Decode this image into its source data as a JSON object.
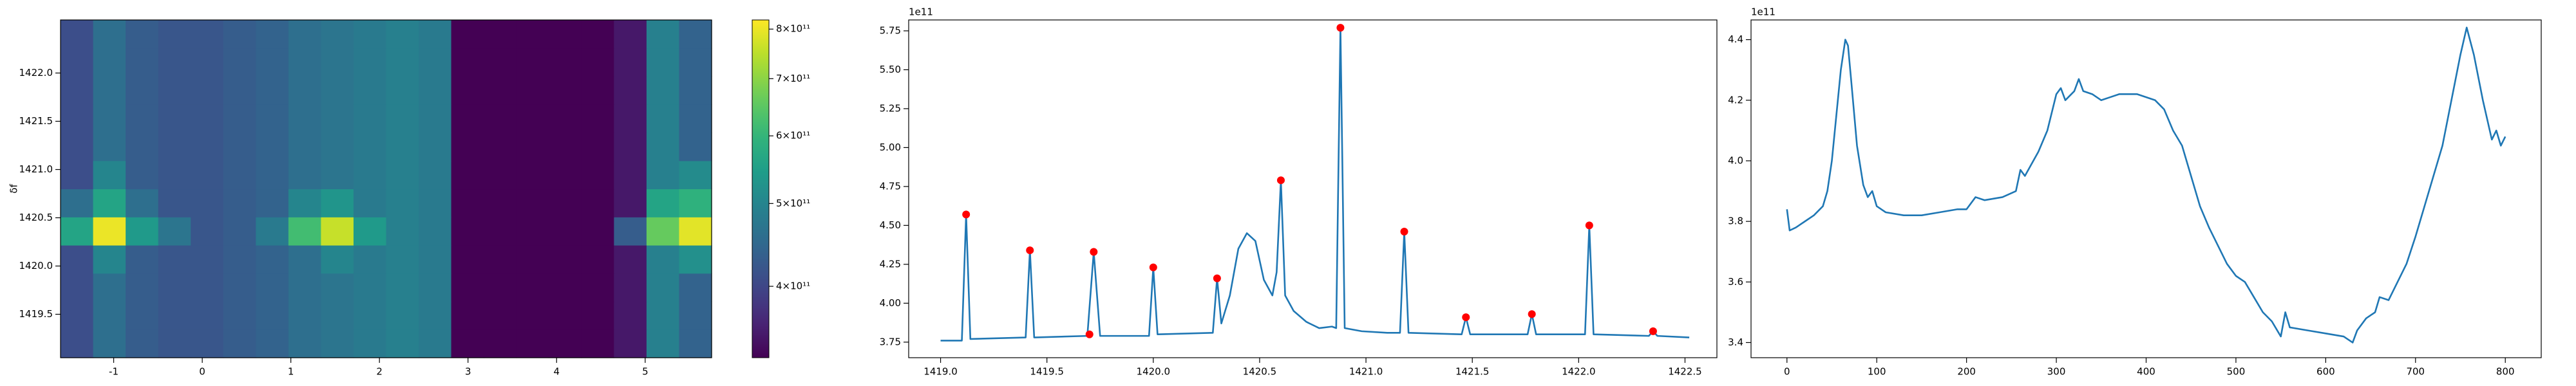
{
  "chart_data": [
    {
      "type": "heatmap",
      "ylabel": "δf",
      "xlim": [
        -1.6,
        5.75
      ],
      "ylim": [
        1419.05,
        1422.55
      ],
      "xticks": [
        -1,
        0,
        1,
        2,
        3,
        4,
        5
      ],
      "yticks": [
        1419.5,
        {
          "value": 1420,
          "label": "1420.0"
        },
        1420.5,
        {
          "value": 1421,
          "label": "1421.0"
        },
        1421.5,
        {
          "value": 1422,
          "label": "1422.0"
        }
      ],
      "z": [
        [
          410000000000.0,
          460000000000.0,
          430000000000.0,
          420000000000.0,
          420000000000.0,
          430000000000.0,
          440000000000.0,
          460000000000.0,
          470000000000.0,
          480000000000.0,
          490000000000.0,
          480000000000.0,
          330000000000.0,
          320000000000.0,
          310000000000.0,
          310000000000.0,
          320000000000.0,
          350000000000.0,
          490000000000.0,
          440000000000.0
        ],
        [
          410000000000.0,
          460000000000.0,
          430000000000.0,
          420000000000.0,
          420000000000.0,
          430000000000.0,
          440000000000.0,
          460000000000.0,
          470000000000.0,
          480000000000.0,
          490000000000.0,
          480000000000.0,
          330000000000.0,
          320000000000.0,
          310000000000.0,
          310000000000.0,
          320000000000.0,
          350000000000.0,
          490000000000.0,
          440000000000.0
        ],
        [
          410000000000.0,
          460000000000.0,
          430000000000.0,
          420000000000.0,
          420000000000.0,
          430000000000.0,
          440000000000.0,
          460000000000.0,
          470000000000.0,
          480000000000.0,
          490000000000.0,
          480000000000.0,
          330000000000.0,
          320000000000.0,
          310000000000.0,
          310000000000.0,
          320000000000.0,
          350000000000.0,
          490000000000.0,
          440000000000.0
        ],
        [
          410000000000.0,
          500000000000.0,
          430000000000.0,
          420000000000.0,
          420000000000.0,
          430000000000.0,
          440000000000.0,
          460000000000.0,
          500000000000.0,
          480000000000.0,
          490000000000.0,
          480000000000.0,
          330000000000.0,
          320000000000.0,
          310000000000.0,
          310000000000.0,
          320000000000.0,
          350000000000.0,
          490000000000.0,
          520000000000.0
        ],
        [
          560000000000.0,
          800000000000.0,
          540000000000.0,
          470000000000.0,
          420000000000.0,
          430000000000.0,
          480000000000.0,
          620000000000.0,
          760000000000.0,
          540000000000.0,
          490000000000.0,
          480000000000.0,
          330000000000.0,
          320000000000.0,
          310000000000.0,
          310000000000.0,
          320000000000.0,
          430000000000.0,
          660000000000.0,
          790000000000.0
        ],
        [
          460000000000.0,
          560000000000.0,
          460000000000.0,
          420000000000.0,
          420000000000.0,
          430000000000.0,
          440000000000.0,
          500000000000.0,
          530000000000.0,
          480000000000.0,
          490000000000.0,
          480000000000.0,
          330000000000.0,
          320000000000.0,
          310000000000.0,
          310000000000.0,
          320000000000.0,
          350000000000.0,
          560000000000.0,
          590000000000.0
        ],
        [
          410000000000.0,
          500000000000.0,
          430000000000.0,
          420000000000.0,
          420000000000.0,
          430000000000.0,
          440000000000.0,
          460000000000.0,
          470000000000.0,
          480000000000.0,
          490000000000.0,
          480000000000.0,
          330000000000.0,
          320000000000.0,
          310000000000.0,
          310000000000.0,
          320000000000.0,
          350000000000.0,
          490000000000.0,
          510000000000.0
        ],
        [
          410000000000.0,
          460000000000.0,
          430000000000.0,
          420000000000.0,
          420000000000.0,
          430000000000.0,
          440000000000.0,
          460000000000.0,
          470000000000.0,
          480000000000.0,
          490000000000.0,
          480000000000.0,
          330000000000.0,
          320000000000.0,
          310000000000.0,
          310000000000.0,
          320000000000.0,
          350000000000.0,
          490000000000.0,
          440000000000.0
        ],
        [
          410000000000.0,
          460000000000.0,
          430000000000.0,
          420000000000.0,
          420000000000.0,
          430000000000.0,
          440000000000.0,
          460000000000.0,
          470000000000.0,
          480000000000.0,
          490000000000.0,
          480000000000.0,
          330000000000.0,
          320000000000.0,
          310000000000.0,
          310000000000.0,
          320000000000.0,
          350000000000.0,
          490000000000.0,
          440000000000.0
        ],
        [
          410000000000.0,
          460000000000.0,
          430000000000.0,
          420000000000.0,
          420000000000.0,
          430000000000.0,
          440000000000.0,
          460000000000.0,
          470000000000.0,
          480000000000.0,
          490000000000.0,
          480000000000.0,
          330000000000.0,
          320000000000.0,
          310000000000.0,
          310000000000.0,
          320000000000.0,
          350000000000.0,
          490000000000.0,
          440000000000.0
        ],
        [
          410000000000.0,
          460000000000.0,
          430000000000.0,
          420000000000.0,
          420000000000.0,
          430000000000.0,
          440000000000.0,
          460000000000.0,
          470000000000.0,
          480000000000.0,
          490000000000.0,
          480000000000.0,
          330000000000.0,
          320000000000.0,
          310000000000.0,
          310000000000.0,
          320000000000.0,
          350000000000.0,
          490000000000.0,
          440000000000.0
        ],
        [
          410000000000.0,
          460000000000.0,
          430000000000.0,
          420000000000.0,
          420000000000.0,
          430000000000.0,
          440000000000.0,
          460000000000.0,
          470000000000.0,
          480000000000.0,
          490000000000.0,
          480000000000.0,
          330000000000.0,
          320000000000.0,
          310000000000.0,
          310000000000.0,
          320000000000.0,
          350000000000.0,
          490000000000.0,
          440000000000.0
        ]
      ],
      "colorbar": {
        "clim": [
          330000000000.0,
          820000000000.0
        ],
        "scale": "log",
        "colormap": "viridis",
        "ticks": [
          {
            "value": 400000000000.0,
            "label": "4×10¹¹"
          },
          {
            "value": 500000000000.0,
            "label": "5×10¹¹"
          },
          {
            "value": 600000000000.0,
            "label": "6×10¹¹"
          },
          {
            "value": 700000000000.0,
            "label": "7×10¹¹"
          },
          {
            "value": 800000000000.0,
            "label": "8×10¹¹"
          }
        ]
      }
    },
    {
      "type": "line",
      "offset_label": "1e11",
      "xlim": [
        1418.85,
        1422.65
      ],
      "ylim": [
        3.65,
        5.82
      ],
      "xticks": [
        {
          "value": 1419,
          "label": "1419.0"
        },
        1419.5,
        {
          "value": 1420,
          "label": "1420.0"
        },
        1420.5,
        {
          "value": 1421,
          "label": "1421.0"
        },
        1421.5,
        {
          "value": 1422,
          "label": "1422.0"
        },
        1422.5
      ],
      "yticks": [
        3.75,
        {
          "value": 4,
          "label": "4.00"
        },
        4.25,
        {
          "value": 4.5,
          "label": "4.50"
        },
        4.75,
        {
          "value": 5,
          "label": "5.00"
        },
        5.25,
        {
          "value": 5.5,
          "label": "5.50"
        },
        5.75
      ],
      "series": [
        {
          "style": "line",
          "color": "#1f77b4",
          "x": [
            1419.0,
            1419.1,
            1419.12,
            1419.14,
            1419.4,
            1419.42,
            1419.44,
            1419.69,
            1419.72,
            1419.75,
            1419.98,
            1420.0,
            1420.02,
            1420.28,
            1420.3,
            1420.32,
            1420.36,
            1420.4,
            1420.44,
            1420.48,
            1420.52,
            1420.56,
            1420.58,
            1420.6,
            1420.62,
            1420.66,
            1420.72,
            1420.78,
            1420.84,
            1420.86,
            1420.88,
            1420.9,
            1420.98,
            1421.1,
            1421.16,
            1421.18,
            1421.2,
            1421.45,
            1421.47,
            1421.49,
            1421.76,
            1421.78,
            1421.8,
            1422.03,
            1422.05,
            1422.07,
            1422.33,
            1422.35,
            1422.37,
            1422.52
          ],
          "values": [
            3.76,
            3.76,
            4.57,
            3.77,
            3.78,
            4.34,
            3.78,
            3.79,
            4.33,
            3.79,
            3.79,
            4.23,
            3.8,
            3.81,
            4.16,
            3.87,
            4.05,
            4.35,
            4.45,
            4.4,
            4.15,
            4.05,
            4.2,
            4.79,
            4.05,
            3.95,
            3.88,
            3.84,
            3.85,
            3.84,
            5.77,
            3.84,
            3.82,
            3.81,
            3.81,
            4.46,
            3.81,
            3.8,
            3.91,
            3.8,
            3.8,
            3.93,
            3.8,
            3.8,
            4.5,
            3.8,
            3.79,
            3.82,
            3.79,
            3.78
          ]
        },
        {
          "style": "points",
          "color": "#ff0000",
          "x": [
            1419.12,
            1419.42,
            1419.7,
            1419.72,
            1420.0,
            1420.3,
            1420.6,
            1420.88,
            1421.18,
            1421.47,
            1421.78,
            1422.05,
            1422.35
          ],
          "values": [
            4.57,
            4.34,
            3.8,
            4.33,
            4.23,
            4.16,
            4.79,
            5.77,
            4.46,
            3.91,
            3.93,
            4.5,
            3.82
          ]
        }
      ]
    },
    {
      "type": "line",
      "offset_label": "1e11",
      "xlim": [
        -40,
        840
      ],
      "ylim": [
        3.35,
        4.465
      ],
      "xticks": [
        0,
        100,
        200,
        300,
        400,
        500,
        600,
        700,
        800
      ],
      "yticks": [
        3.4,
        3.6,
        3.8,
        {
          "value": 4,
          "label": "4.0"
        },
        4.2,
        4.4
      ],
      "series": [
        {
          "style": "line",
          "color": "#1f77b4",
          "x": [
            0,
            3,
            10,
            20,
            30,
            40,
            45,
            50,
            55,
            60,
            65,
            68,
            72,
            78,
            85,
            90,
            95,
            100,
            110,
            130,
            150,
            170,
            190,
            200,
            210,
            220,
            240,
            255,
            260,
            265,
            280,
            290,
            300,
            305,
            310,
            320,
            325,
            330,
            340,
            350,
            360,
            370,
            390,
            410,
            420,
            430,
            440,
            450,
            460,
            470,
            480,
            490,
            500,
            510,
            520,
            530,
            540,
            550,
            555,
            560,
            580,
            600,
            620,
            630,
            635,
            645,
            655,
            660,
            670,
            680,
            690,
            700,
            710,
            720,
            730,
            740,
            750,
            757,
            765,
            775,
            785,
            790,
            795,
            800
          ],
          "values": [
            3.84,
            3.77,
            3.78,
            3.8,
            3.82,
            3.85,
            3.9,
            4.0,
            4.15,
            4.3,
            4.4,
            4.38,
            4.25,
            4.05,
            3.92,
            3.88,
            3.9,
            3.85,
            3.83,
            3.82,
            3.82,
            3.83,
            3.84,
            3.84,
            3.88,
            3.87,
            3.88,
            3.9,
            3.97,
            3.95,
            4.03,
            4.1,
            4.22,
            4.24,
            4.2,
            4.23,
            4.27,
            4.23,
            4.22,
            4.2,
            4.21,
            4.22,
            4.22,
            4.2,
            4.17,
            4.1,
            4.05,
            3.95,
            3.85,
            3.78,
            3.72,
            3.66,
            3.62,
            3.6,
            3.55,
            3.5,
            3.47,
            3.42,
            3.5,
            3.45,
            3.44,
            3.43,
            3.42,
            3.4,
            3.44,
            3.48,
            3.5,
            3.55,
            3.54,
            3.6,
            3.66,
            3.75,
            3.85,
            3.95,
            4.05,
            4.2,
            4.35,
            4.44,
            4.35,
            4.2,
            4.07,
            4.1,
            4.05,
            4.08
          ]
        }
      ]
    }
  ]
}
